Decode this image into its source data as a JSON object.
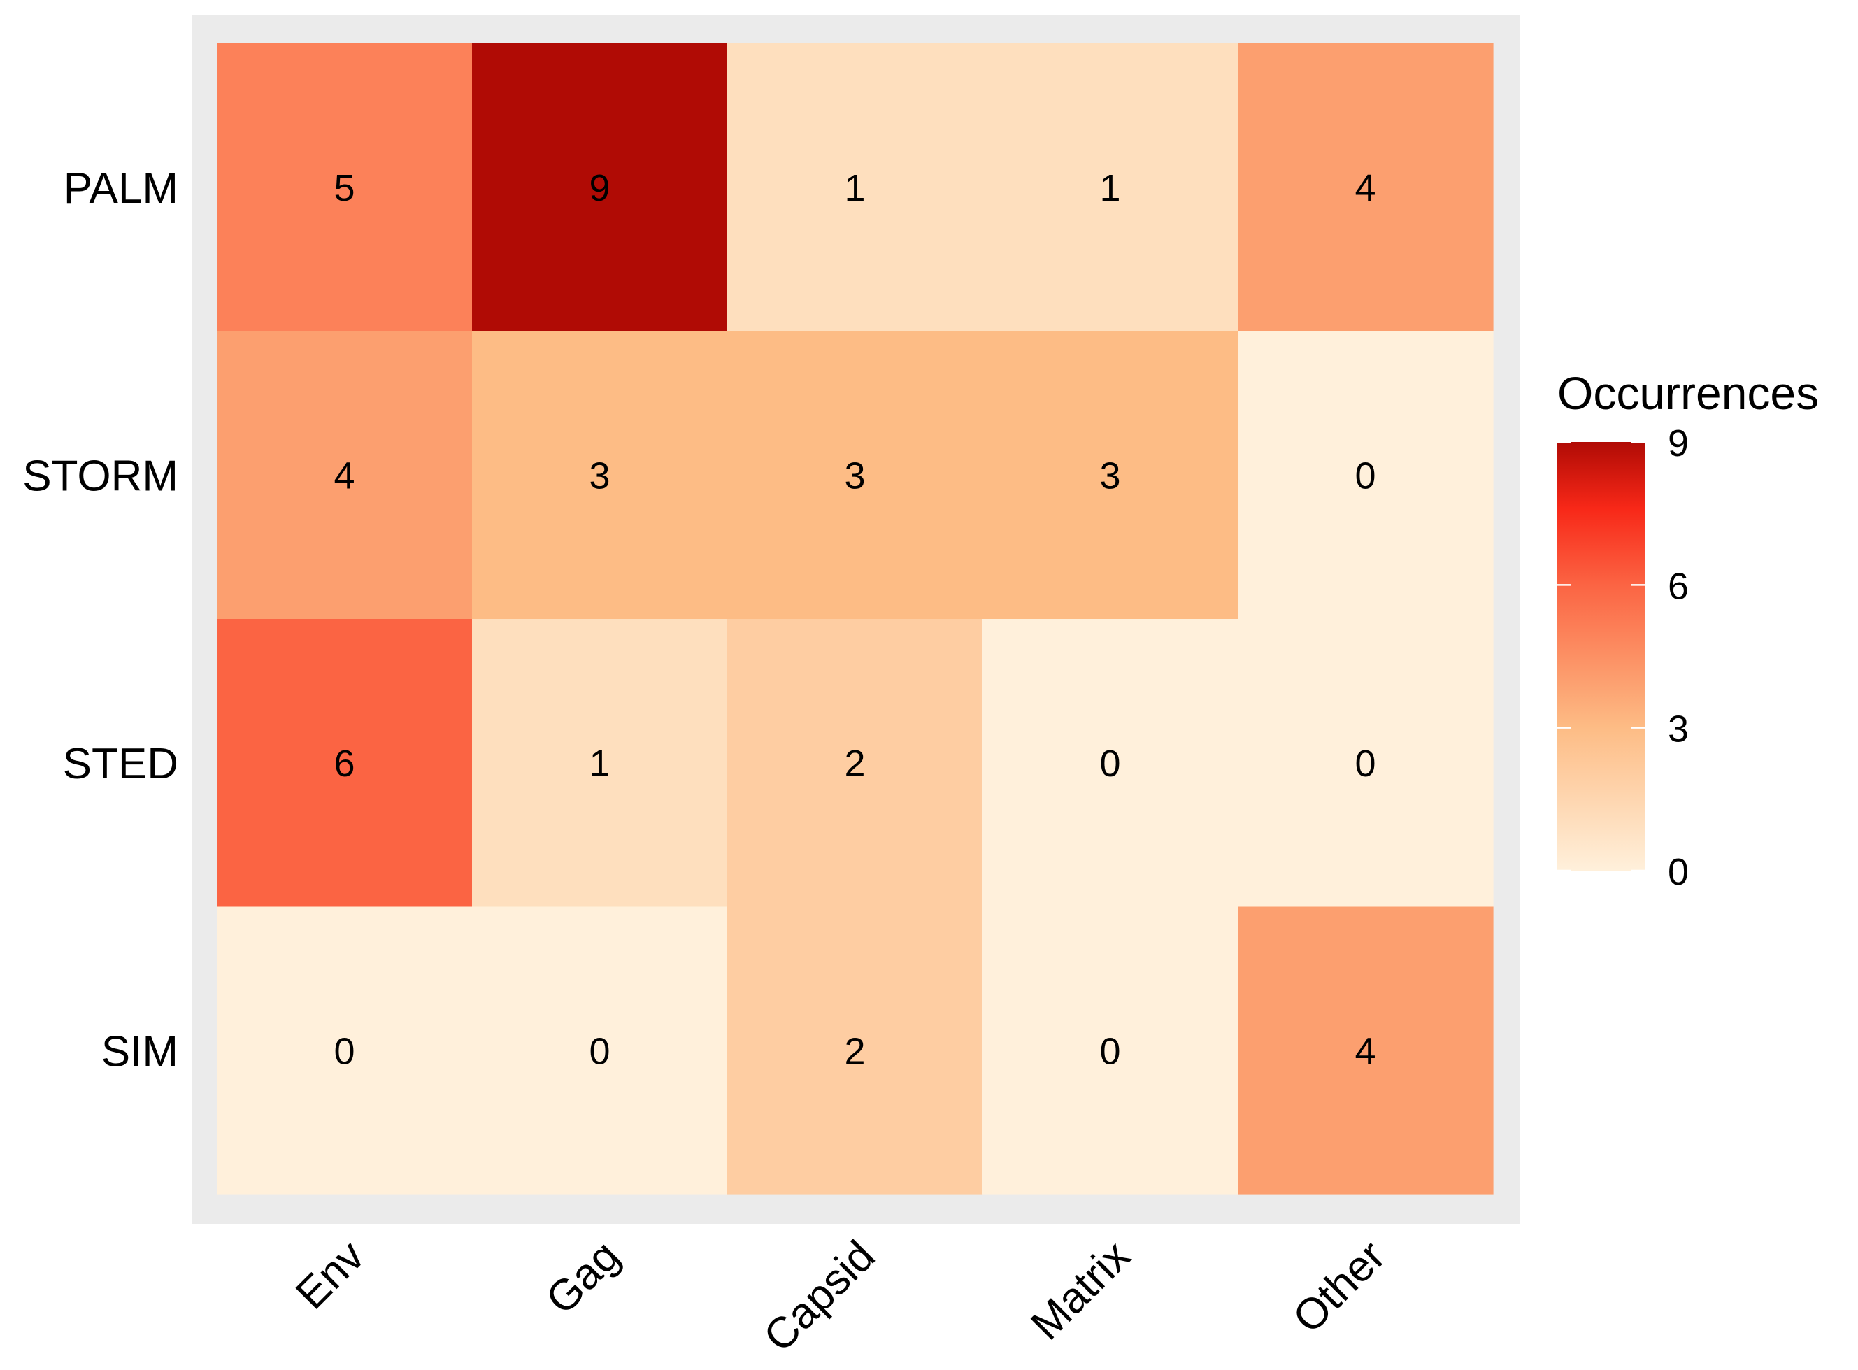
{
  "chart_data": {
    "type": "heatmap",
    "title": "",
    "xlabel": "",
    "ylabel": "",
    "x_categories": [
      "Env",
      "Gag",
      "Capsid",
      "Matrix",
      "Other"
    ],
    "y_categories": [
      "PALM",
      "STORM",
      "STED",
      "SIM"
    ],
    "values": [
      [
        5,
        9,
        1,
        1,
        4
      ],
      [
        4,
        3,
        3,
        3,
        0
      ],
      [
        6,
        1,
        2,
        0,
        0
      ],
      [
        0,
        0,
        2,
        0,
        4
      ]
    ],
    "value_range": [
      0,
      9
    ],
    "legend": {
      "title": "Occurrences",
      "ticks": [
        0,
        3,
        6,
        9
      ],
      "tick_labels": [
        "0",
        "3",
        "6",
        "9"
      ],
      "placement": "right"
    },
    "color_scale": {
      "stops": [
        {
          "value": 0,
          "color": "#fff0db"
        },
        {
          "value": 3,
          "color": "#fdbc85"
        },
        {
          "value": 6,
          "color": "#fb6443"
        },
        {
          "value": 7.6,
          "color": "#f82818"
        },
        {
          "value": 9,
          "color": "#b00b05"
        }
      ]
    },
    "panel_background": "#ebebeb",
    "grid": false
  }
}
